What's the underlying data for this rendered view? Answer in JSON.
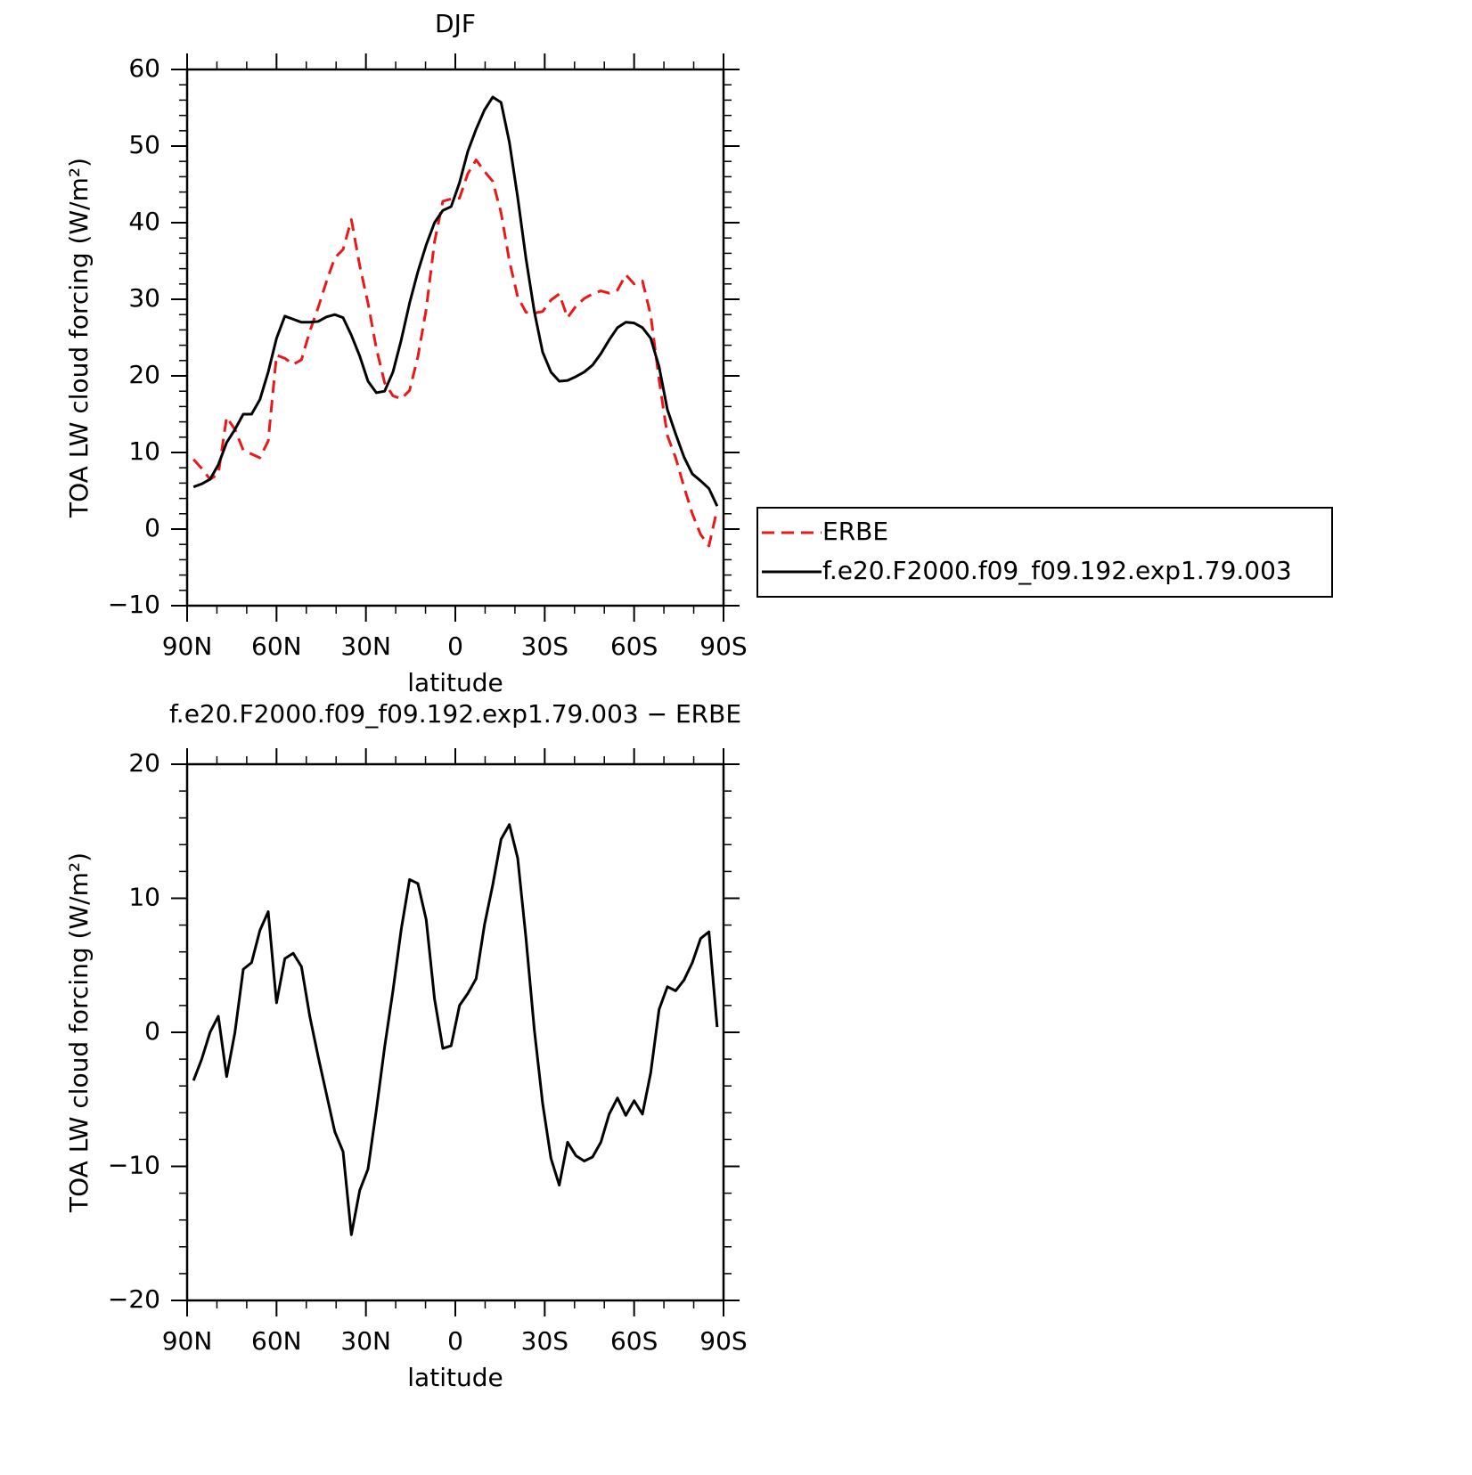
{
  "chart_data": [
    {
      "type": "line",
      "title": "DJF",
      "x_label": "latitude",
      "y_label": "TOA LW cloud forcing (W/m²)",
      "x": [
        87.86,
        85.1,
        82.31,
        79.53,
        76.74,
        73.95,
        71.16,
        68.37,
        65.58,
        62.79,
        60.0,
        57.21,
        54.42,
        51.63,
        48.84,
        46.04,
        43.25,
        40.46,
        37.67,
        34.88,
        32.09,
        29.3,
        26.51,
        23.72,
        20.93,
        18.14,
        15.35,
        12.56,
        9.77,
        6.98,
        4.19,
        1.4,
        -1.4,
        -4.19,
        -6.98,
        -9.77,
        -12.56,
        -15.35,
        -18.14,
        -20.93,
        -23.72,
        -26.51,
        -29.3,
        -32.09,
        -34.88,
        -37.67,
        -40.46,
        -43.25,
        -46.04,
        -48.84,
        -51.63,
        -54.42,
        -57.21,
        -60.0,
        -62.79,
        -65.58,
        -68.37,
        -71.16,
        -73.95,
        -76.74,
        -79.53,
        -82.31,
        -85.1,
        -87.86
      ],
      "xlim": [
        90,
        -90
      ],
      "xticks": [
        {
          "value": 90,
          "label": "90N"
        },
        {
          "value": 60,
          "label": "60N"
        },
        {
          "value": 30,
          "label": "30N"
        },
        0,
        {
          "value": -30,
          "label": "30S"
        },
        {
          "value": -60,
          "label": "60S"
        },
        {
          "value": -90,
          "label": "90S"
        }
      ],
      "ylim": [
        -10,
        60
      ],
      "yticks": [
        {
          "value": -10,
          "label": "−10"
        },
        0,
        10,
        20,
        30,
        40,
        50,
        60
      ],
      "legend": "right",
      "series": [
        {
          "name": "ERBE",
          "color": "#e8181b",
          "linestyle": "dashed",
          "values": [
            9.1,
            7.9,
            6.5,
            7.2,
            14.6,
            13.0,
            10.3,
            9.8,
            9.3,
            11.5,
            22.7,
            22.3,
            21.5,
            22.1,
            25.8,
            28.9,
            32.3,
            35.4,
            36.5,
            40.4,
            34.4,
            29.5,
            23.6,
            19.1,
            17.4,
            17.0,
            18.1,
            22.5,
            28.7,
            37.5,
            42.8,
            43.1,
            43.2,
            46.4,
            48.2,
            46.7,
            45.4,
            41.3,
            35.0,
            30.3,
            28.3,
            28.2,
            28.4,
            29.9,
            30.7,
            27.6,
            29.1,
            30.1,
            30.7,
            31.1,
            30.8,
            31.2,
            33.2,
            32.0,
            32.4,
            27.9,
            19.5,
            12.2,
            9.3,
            5.5,
            2.0,
            -0.7,
            -2.2,
            2.6
          ]
        },
        {
          "name": "f.e20.F2000.f09_f09.192.exp1.79.003",
          "color": "#000000",
          "linestyle": "solid",
          "values": [
            5.5,
            5.9,
            6.5,
            8.4,
            11.3,
            13.0,
            15.0,
            15.0,
            16.9,
            20.5,
            24.9,
            27.8,
            27.4,
            27.0,
            27.0,
            27.1,
            27.7,
            28.0,
            27.6,
            25.3,
            22.6,
            19.3,
            17.8,
            18.0,
            20.5,
            24.7,
            29.5,
            33.6,
            37.1,
            40.0,
            41.6,
            42.1,
            45.2,
            49.3,
            52.2,
            54.7,
            56.4,
            55.7,
            50.5,
            43.3,
            35.3,
            28.4,
            23.1,
            20.5,
            19.3,
            19.4,
            19.9,
            20.5,
            21.4,
            22.9,
            24.7,
            26.3,
            27.0,
            26.9,
            26.3,
            24.9,
            21.2,
            15.6,
            12.4,
            9.4,
            7.2,
            6.3,
            5.3,
            3.0
          ]
        }
      ]
    },
    {
      "type": "line",
      "title": "f.e20.F2000.f09_f09.192.exp1.79.003 − ERBE",
      "x_label": "latitude",
      "y_label": "TOA LW cloud forcing (W/m²)",
      "x": [
        87.86,
        85.1,
        82.31,
        79.53,
        76.74,
        73.95,
        71.16,
        68.37,
        65.58,
        62.79,
        60.0,
        57.21,
        54.42,
        51.63,
        48.84,
        46.04,
        43.25,
        40.46,
        37.67,
        34.88,
        32.09,
        29.3,
        26.51,
        23.72,
        20.93,
        18.14,
        15.35,
        12.56,
        9.77,
        6.98,
        4.19,
        1.4,
        -1.4,
        -4.19,
        -6.98,
        -9.77,
        -12.56,
        -15.35,
        -18.14,
        -20.93,
        -23.72,
        -26.51,
        -29.3,
        -32.09,
        -34.88,
        -37.67,
        -40.46,
        -43.25,
        -46.04,
        -48.84,
        -51.63,
        -54.42,
        -57.21,
        -60.0,
        -62.79,
        -65.58,
        -68.37,
        -71.16,
        -73.95,
        -76.74,
        -79.53,
        -82.31,
        -85.1,
        -87.86
      ],
      "xlim": [
        90,
        -90
      ],
      "xticks": [
        {
          "value": 90,
          "label": "90N"
        },
        {
          "value": 60,
          "label": "60N"
        },
        {
          "value": 30,
          "label": "30N"
        },
        0,
        {
          "value": -30,
          "label": "30S"
        },
        {
          "value": -60,
          "label": "60S"
        },
        {
          "value": -90,
          "label": "90S"
        }
      ],
      "ylim": [
        -20,
        20
      ],
      "yticks": [
        {
          "value": -20,
          "label": "−20"
        },
        {
          "value": -10,
          "label": "−10"
        },
        0,
        10,
        20
      ],
      "series": [
        {
          "color": "#000000",
          "linestyle": "solid",
          "values": [
            -3.6,
            -2.0,
            0.0,
            1.2,
            -3.3,
            0.0,
            4.7,
            5.2,
            7.6,
            9.0,
            2.2,
            5.5,
            5.9,
            4.9,
            1.2,
            -1.8,
            -4.6,
            -7.4,
            -8.9,
            -15.1,
            -11.8,
            -10.2,
            -5.8,
            -1.1,
            3.1,
            7.7,
            11.4,
            11.1,
            8.4,
            2.5,
            -1.2,
            -1.0,
            2.0,
            2.9,
            4.0,
            8.0,
            11.0,
            14.4,
            15.5,
            13.0,
            7.0,
            0.2,
            -5.3,
            -9.4,
            -11.4,
            -8.2,
            -9.2,
            -9.6,
            -9.3,
            -8.2,
            -6.1,
            -4.9,
            -6.2,
            -5.1,
            -6.1,
            -3.0,
            1.7,
            3.4,
            3.1,
            3.9,
            5.2,
            7.0,
            7.5,
            0.4
          ]
        }
      ]
    }
  ]
}
